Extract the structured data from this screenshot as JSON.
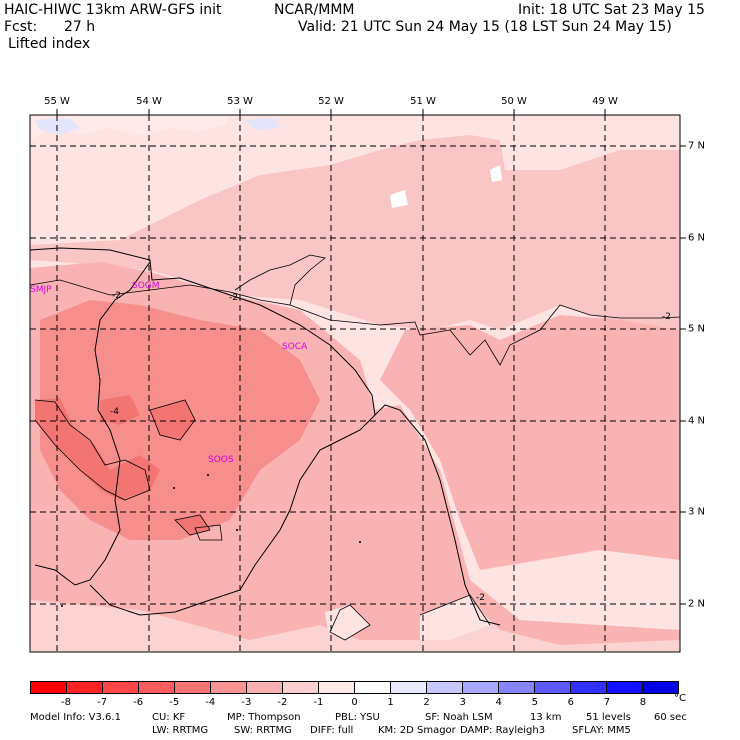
{
  "header": {
    "model": "HAIC-HIWC 13km ARW-GFS init",
    "org": "NCAR/MMM",
    "init": "Init: 18 UTC Sat 23 May 15",
    "fcst_label": "Fcst:",
    "fcst_value": "27 h",
    "valid": "Valid: 21 UTC Sun 24 May 15 (18 LST Sun 24 May 15)",
    "field": "Lifted index"
  },
  "map": {
    "lon_labels": [
      "55 W",
      "54 W",
      "53 W",
      "52 W",
      "51 W",
      "50 W",
      "49 W"
    ],
    "lat_labels": [
      "7 N",
      "6 N",
      "5 N",
      "4 N",
      "3 N",
      "2 N"
    ],
    "stations": [
      "SMJP",
      "SOCA",
      "SOGM",
      "SOOS"
    ],
    "contour_labels": [
      "-2",
      "-2",
      "-2",
      "-4",
      "-2"
    ],
    "colors": {
      "ocean_light": "#fde3e2",
      "land_medium": "#f9b3b2",
      "land_strong": "#f68f8c",
      "land_deep": "#f27571",
      "pale_blue": "#e4e4fb",
      "station": "#dd00dd"
    }
  },
  "colorbar": {
    "unit": "°C",
    "tick_labels": [
      "-8",
      "-7",
      "-6",
      "-5",
      "-4",
      "-3",
      "-2",
      "-1",
      "0",
      "1",
      "2",
      "3",
      "4",
      "5",
      "6",
      "7",
      "8"
    ],
    "colors": [
      "#ff0000",
      "#ff2424",
      "#ff4848",
      "#ff5d5d",
      "#fb7373",
      "#f99494",
      "#f8b0b0",
      "#fcd0d0",
      "#ffe9e9",
      "#ffffff",
      "#e9e9ff",
      "#c8c8ff",
      "#a8a8ff",
      "#8585ff",
      "#5a5aff",
      "#3232ff",
      "#1111ff",
      "#0000e6"
    ]
  },
  "footer": {
    "line1": [
      "Model Info: V3.6.1",
      "CU: KF",
      "MP: Thompson",
      "PBL: YSU",
      "SF: Noah LSM",
      "13 km",
      "51 levels",
      "60 sec"
    ],
    "line2": [
      "LW: RRTMG",
      "SW: RRTMG",
      "DIFF: full",
      "KM: 2D Smagor",
      "DAMP: Rayleigh3",
      "SFLAY: MM5"
    ]
  }
}
